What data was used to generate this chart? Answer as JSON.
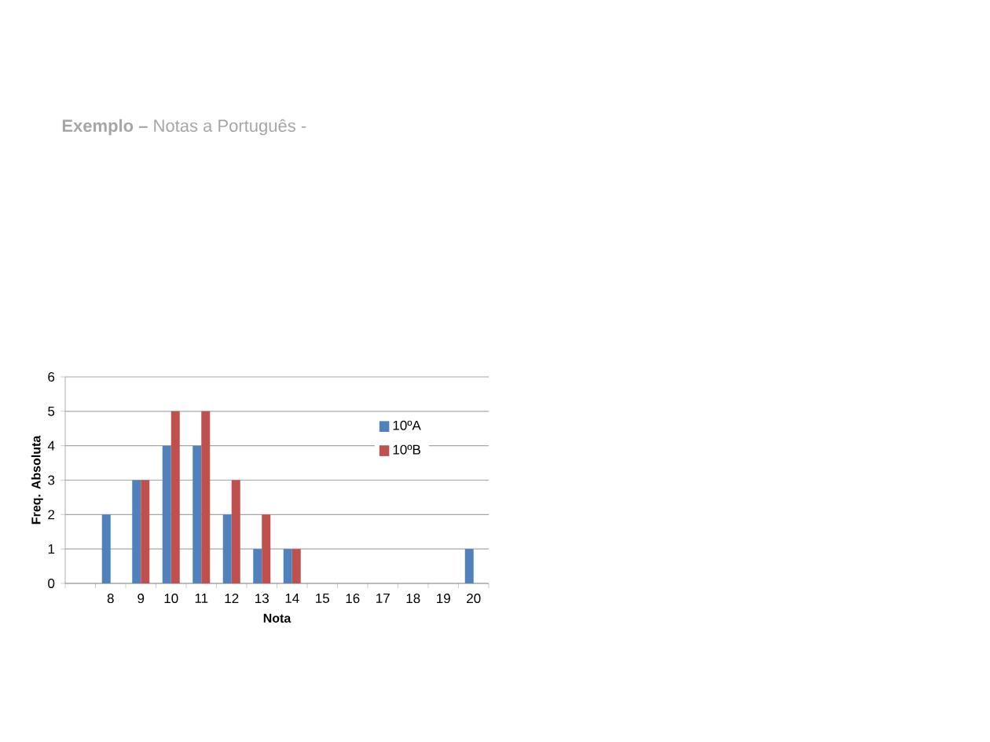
{
  "chart_data": {
    "type": "bar",
    "title": "**Exemplo –** Notas a Português -",
    "xlabel": "Nota",
    "ylabel": "Freq. Absoluta",
    "categories": [
      null,
      "8",
      "9",
      "10",
      "11",
      "12",
      "13",
      "14",
      "15",
      "16",
      "17",
      "18",
      "19",
      "20"
    ],
    "series": [
      {
        "name": "10ºA",
        "color": "#4f81bd",
        "values": [
          null,
          2,
          3,
          4,
          4,
          2,
          1,
          1,
          0,
          0,
          0,
          0,
          0,
          1
        ]
      },
      {
        "name": "10ºB",
        "color": "#c0504d",
        "values": [
          null,
          0,
          3,
          5,
          5,
          3,
          2,
          1,
          0,
          0,
          0,
          0,
          0,
          0
        ]
      }
    ],
    "ylim": [
      0,
      6
    ],
    "yticks": [
      0,
      1,
      2,
      3,
      4,
      5,
      6
    ],
    "grid": "y",
    "legend": "top right"
  }
}
